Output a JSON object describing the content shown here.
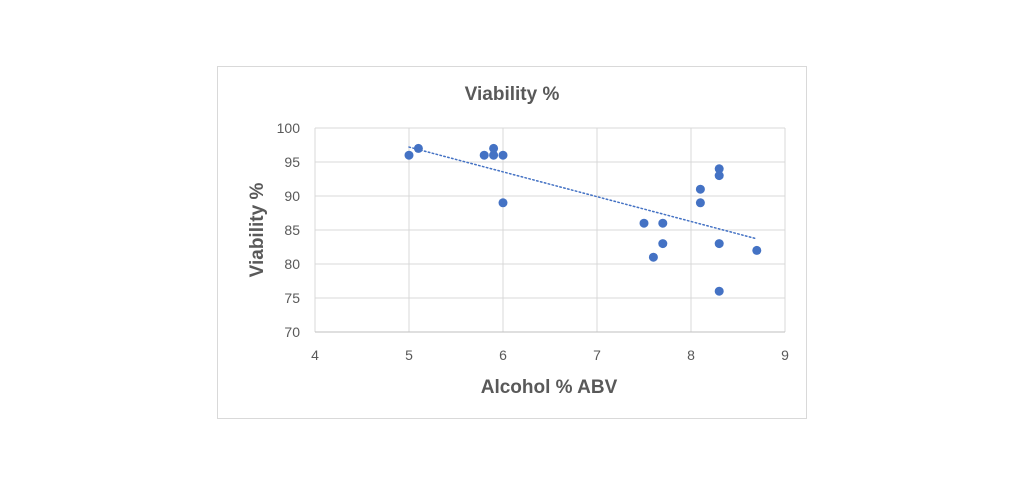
{
  "chart_data": {
    "type": "scatter",
    "title": "Viability %",
    "xlabel": "Alcohol % ABV",
    "ylabel": "Viability %",
    "xlim": [
      4,
      9
    ],
    "ylim": [
      70,
      100
    ],
    "x_ticks": [
      "4",
      "5",
      "6",
      "7",
      "8",
      "9"
    ],
    "y_ticks": [
      "70",
      "75",
      "80",
      "85",
      "90",
      "95",
      "100"
    ],
    "grid": true,
    "legend": "none",
    "series": [
      {
        "color": "#4472c4",
        "points": [
          {
            "x": 5.0,
            "y": 96
          },
          {
            "x": 5.1,
            "y": 97
          },
          {
            "x": 5.8,
            "y": 96
          },
          {
            "x": 5.9,
            "y": 97
          },
          {
            "x": 5.9,
            "y": 96
          },
          {
            "x": 6.0,
            "y": 96
          },
          {
            "x": 6.0,
            "y": 89
          },
          {
            "x": 7.5,
            "y": 86
          },
          {
            "x": 7.6,
            "y": 81
          },
          {
            "x": 7.7,
            "y": 86
          },
          {
            "x": 7.7,
            "y": 83
          },
          {
            "x": 8.1,
            "y": 91
          },
          {
            "x": 8.1,
            "y": 89
          },
          {
            "x": 8.3,
            "y": 94
          },
          {
            "x": 8.3,
            "y": 93
          },
          {
            "x": 8.3,
            "y": 83
          },
          {
            "x": 8.3,
            "y": 76
          },
          {
            "x": 8.7,
            "y": 82
          }
        ]
      }
    ],
    "trendline": {
      "style": "dotted-linear",
      "color": "#4472c4",
      "start": {
        "x": 5.0,
        "y": 97.2
      },
      "end": {
        "x": 8.7,
        "y": 83.7
      }
    }
  }
}
